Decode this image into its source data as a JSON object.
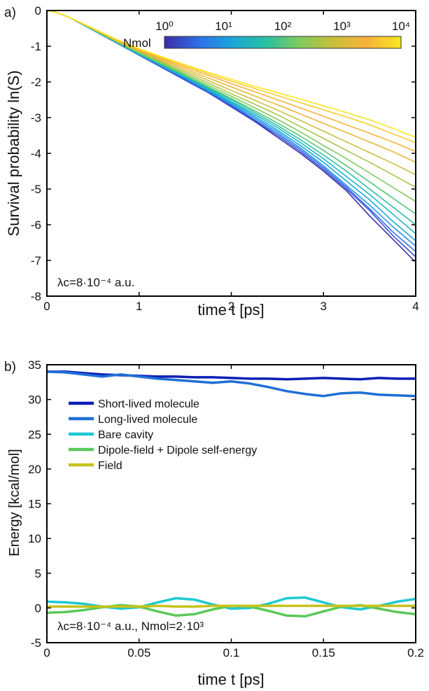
{
  "chart_data": [
    {
      "panel_label": "a)",
      "type": "line",
      "xlabel": "time t [ps]",
      "ylabel": "Survival probability ln(S)",
      "xlim": [
        0,
        4
      ],
      "ylim": [
        -8,
        0
      ],
      "xticks": [
        "0",
        "1",
        "2",
        "3",
        "4"
      ],
      "yticks": [
        "0",
        "-1",
        "-2",
        "-3",
        "-4",
        "-5",
        "-6",
        "-7",
        "-8"
      ],
      "annotation": "λc=8·10⁻⁴ a.u.",
      "colorbar": {
        "label": "Nmol",
        "scale": "log",
        "ticks": [
          "10⁰",
          "10¹",
          "10²",
          "10³",
          "10⁴"
        ],
        "colormap": [
          "#3b2da3",
          "#2f6ee8",
          "#1aa6d8",
          "#28c0a2",
          "#7fcb5c",
          "#c9bf3a",
          "#f7b23b",
          "#f9e61e"
        ]
      },
      "grid": false,
      "x": [
        0,
        0.1,
        0.25,
        0.5,
        0.75,
        1,
        1.25,
        1.5,
        1.75,
        2,
        2.25,
        2.5,
        2.75,
        3,
        3.25,
        3.5,
        3.75,
        4
      ],
      "series": [
        {
          "values": [
            0,
            -0.05,
            -0.2,
            -0.55,
            -0.9,
            -1.25,
            -1.6,
            -1.95,
            -2.3,
            -2.7,
            -3.1,
            -3.55,
            -4.0,
            -4.5,
            -5.05,
            -5.75,
            -6.4,
            -7.05
          ],
          "color": "#3b2da3"
        },
        {
          "values": [
            0,
            -0.05,
            -0.2,
            -0.55,
            -0.9,
            -1.25,
            -1.6,
            -1.95,
            -2.3,
            -2.68,
            -3.08,
            -3.5,
            -3.95,
            -4.45,
            -5.0,
            -5.6,
            -6.3,
            -6.9
          ],
          "color": "#3a52d6"
        },
        {
          "values": [
            0,
            -0.05,
            -0.2,
            -0.55,
            -0.9,
            -1.24,
            -1.58,
            -1.92,
            -2.27,
            -2.65,
            -3.05,
            -3.45,
            -3.9,
            -4.4,
            -4.95,
            -5.55,
            -6.2,
            -6.75
          ],
          "color": "#2f6ee8"
        },
        {
          "values": [
            0,
            -0.05,
            -0.2,
            -0.55,
            -0.9,
            -1.24,
            -1.57,
            -1.9,
            -2.25,
            -2.62,
            -3.0,
            -3.4,
            -3.85,
            -4.35,
            -4.9,
            -5.45,
            -6.05,
            -6.6
          ],
          "color": "#2394e6"
        },
        {
          "values": [
            0,
            -0.05,
            -0.2,
            -0.54,
            -0.89,
            -1.23,
            -1.55,
            -1.88,
            -2.22,
            -2.58,
            -2.95,
            -3.35,
            -3.78,
            -4.25,
            -4.78,
            -5.3,
            -5.9,
            -6.45
          ],
          "color": "#1aa6d8"
        },
        {
          "values": [
            0,
            -0.05,
            -0.2,
            -0.54,
            -0.88,
            -1.22,
            -1.54,
            -1.86,
            -2.2,
            -2.55,
            -2.9,
            -3.28,
            -3.7,
            -4.15,
            -4.65,
            -5.15,
            -5.7,
            -6.25
          ],
          "color": "#1db7c2"
        },
        {
          "values": [
            0,
            -0.05,
            -0.2,
            -0.54,
            -0.88,
            -1.21,
            -1.52,
            -1.84,
            -2.17,
            -2.5,
            -2.85,
            -3.22,
            -3.62,
            -4.05,
            -4.5,
            -5.0,
            -5.5,
            -6.0
          ],
          "color": "#28c0a2"
        },
        {
          "values": [
            0,
            -0.05,
            -0.2,
            -0.53,
            -0.87,
            -1.2,
            -1.5,
            -1.82,
            -2.14,
            -2.46,
            -2.8,
            -3.15,
            -3.52,
            -3.92,
            -4.35,
            -4.8,
            -5.25,
            -5.7
          ],
          "color": "#55c77a"
        },
        {
          "values": [
            0,
            -0.05,
            -0.2,
            -0.53,
            -0.86,
            -1.18,
            -1.48,
            -1.78,
            -2.09,
            -2.4,
            -2.72,
            -3.05,
            -3.4,
            -3.78,
            -4.15,
            -4.55,
            -4.95,
            -5.35
          ],
          "color": "#7fcb5c"
        },
        {
          "values": [
            0,
            -0.05,
            -0.2,
            -0.52,
            -0.85,
            -1.16,
            -1.45,
            -1.74,
            -2.03,
            -2.33,
            -2.62,
            -2.92,
            -3.25,
            -3.58,
            -3.92,
            -4.25,
            -4.6,
            -4.95
          ],
          "color": "#a6c748"
        },
        {
          "values": [
            0,
            -0.05,
            -0.2,
            -0.52,
            -0.84,
            -1.14,
            -1.42,
            -1.69,
            -1.96,
            -2.24,
            -2.51,
            -2.79,
            -3.08,
            -3.38,
            -3.68,
            -3.98,
            -4.28,
            -4.6
          ],
          "color": "#c9bf3a"
        },
        {
          "values": [
            0,
            -0.05,
            -0.2,
            -0.51,
            -0.83,
            -1.12,
            -1.38,
            -1.64,
            -1.89,
            -2.14,
            -2.39,
            -2.64,
            -2.9,
            -3.16,
            -3.42,
            -3.68,
            -3.95,
            -4.25
          ],
          "color": "#e6b838"
        },
        {
          "values": [
            0,
            -0.05,
            -0.2,
            -0.51,
            -0.82,
            -1.1,
            -1.35,
            -1.59,
            -1.82,
            -2.05,
            -2.27,
            -2.5,
            -2.73,
            -2.96,
            -3.2,
            -3.44,
            -3.68,
            -3.95
          ],
          "color": "#f7b23b"
        },
        {
          "values": [
            0,
            -0.05,
            -0.2,
            -0.5,
            -0.81,
            -1.08,
            -1.32,
            -1.55,
            -1.77,
            -1.98,
            -2.18,
            -2.38,
            -2.58,
            -2.78,
            -2.98,
            -3.2,
            -3.45,
            -3.7
          ],
          "color": "#f9cc2c"
        },
        {
          "values": [
            0,
            -0.05,
            -0.2,
            -0.5,
            -0.8,
            -1.07,
            -1.3,
            -1.52,
            -1.73,
            -1.93,
            -2.12,
            -2.3,
            -2.48,
            -2.67,
            -2.86,
            -3.06,
            -3.3,
            -3.55
          ],
          "color": "#f9e61e"
        }
      ]
    },
    {
      "panel_label": "b)",
      "type": "line",
      "xlabel": "time t [ps]",
      "ylabel": "Energy [kcal/mol]",
      "xlim": [
        0,
        0.2
      ],
      "ylim": [
        -5,
        35
      ],
      "xticks": [
        "0",
        "0.05",
        "0.1",
        "0.15",
        "0.2"
      ],
      "yticks": [
        "35",
        "30",
        "25",
        "20",
        "15",
        "10",
        "5",
        "0",
        "-5"
      ],
      "annotation": "λc=8·10⁻⁴ a.u., Nmol=2·10³",
      "legend_position": "top-left",
      "grid": false,
      "x": [
        0,
        0.01,
        0.02,
        0.03,
        0.04,
        0.05,
        0.06,
        0.07,
        0.08,
        0.09,
        0.1,
        0.11,
        0.12,
        0.13,
        0.14,
        0.15,
        0.16,
        0.17,
        0.18,
        0.19,
        0.2
      ],
      "series": [
        {
          "name": "Short-lived molecule",
          "color": "#0b1fb5",
          "values": [
            34,
            34,
            33.8,
            33.6,
            33.5,
            33.4,
            33.3,
            33.3,
            33.2,
            33.2,
            33.1,
            33.0,
            33.0,
            32.9,
            33.0,
            33.1,
            33.0,
            32.9,
            33.1,
            33.0,
            33.0
          ]
        },
        {
          "name": "Long-lived molecule",
          "color": "#1f6fd6",
          "values": [
            34,
            33.9,
            33.6,
            33.3,
            33.6,
            33.3,
            33.0,
            32.8,
            32.6,
            32.4,
            32.6,
            32.3,
            31.8,
            31.2,
            30.8,
            30.5,
            30.9,
            31.0,
            30.7,
            30.6,
            30.5
          ]
        },
        {
          "name": "Bare cavity",
          "color": "#1ec9d2",
          "values": [
            0.9,
            0.8,
            0.6,
            0.2,
            -0.1,
            0.1,
            0.8,
            1.4,
            1.2,
            0.5,
            -0.1,
            0.0,
            0.6,
            1.4,
            1.5,
            0.8,
            0.1,
            -0.2,
            0.3,
            0.9,
            1.3
          ]
        },
        {
          "name": "Dipole-field + Dipole self-energy",
          "color": "#5bc85a",
          "values": [
            -0.7,
            -0.6,
            -0.3,
            0.1,
            0.4,
            0.2,
            -0.5,
            -1.1,
            -0.9,
            -0.2,
            0.3,
            0.2,
            -0.4,
            -1.1,
            -1.2,
            -0.5,
            0.2,
            0.4,
            -0.1,
            -0.6,
            -0.9
          ]
        },
        {
          "name": "Field",
          "color": "#c8c21c",
          "values": [
            0.2,
            0.2,
            0.2,
            0.2,
            0.2,
            0.2,
            0.3,
            0.2,
            0.2,
            0.3,
            0.3,
            0.3,
            0.3,
            0.3,
            0.3,
            0.3,
            0.3,
            0.3,
            0.3,
            0.3,
            0.3
          ]
        }
      ]
    }
  ]
}
